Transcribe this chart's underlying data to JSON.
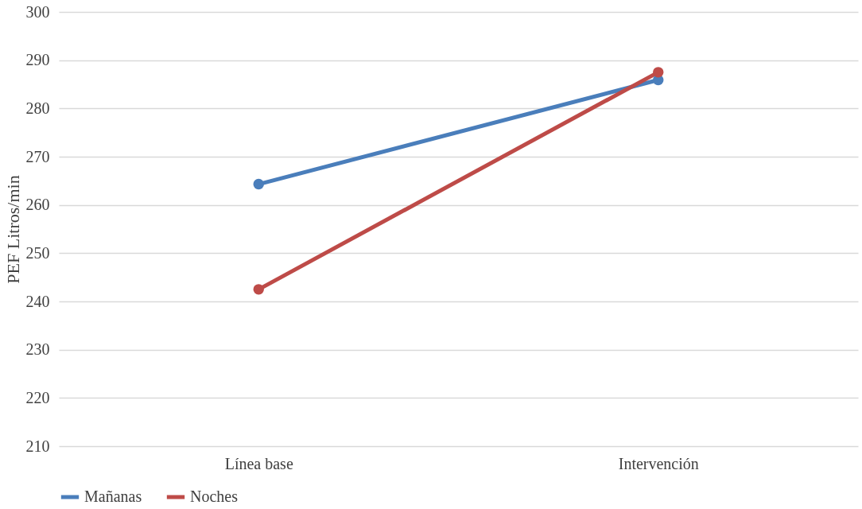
{
  "chart_data": {
    "type": "line",
    "ylabel": "PEF  Litros/min",
    "categories": [
      "Línea base",
      "Intervención"
    ],
    "series": [
      {
        "name": "Mañanas",
        "color": "#4a7ebb",
        "values": [
          264.3,
          285.9
        ]
      },
      {
        "name": "Noches",
        "color": "#be4b48",
        "values": [
          242.5,
          287.5
        ]
      }
    ],
    "ylim": [
      210,
      300
    ],
    "yticks": [
      210,
      220,
      230,
      240,
      250,
      260,
      270,
      280,
      290,
      300
    ],
    "grid": "y",
    "legend": "bottom",
    "marker": "circle",
    "line_style": "solid"
  }
}
